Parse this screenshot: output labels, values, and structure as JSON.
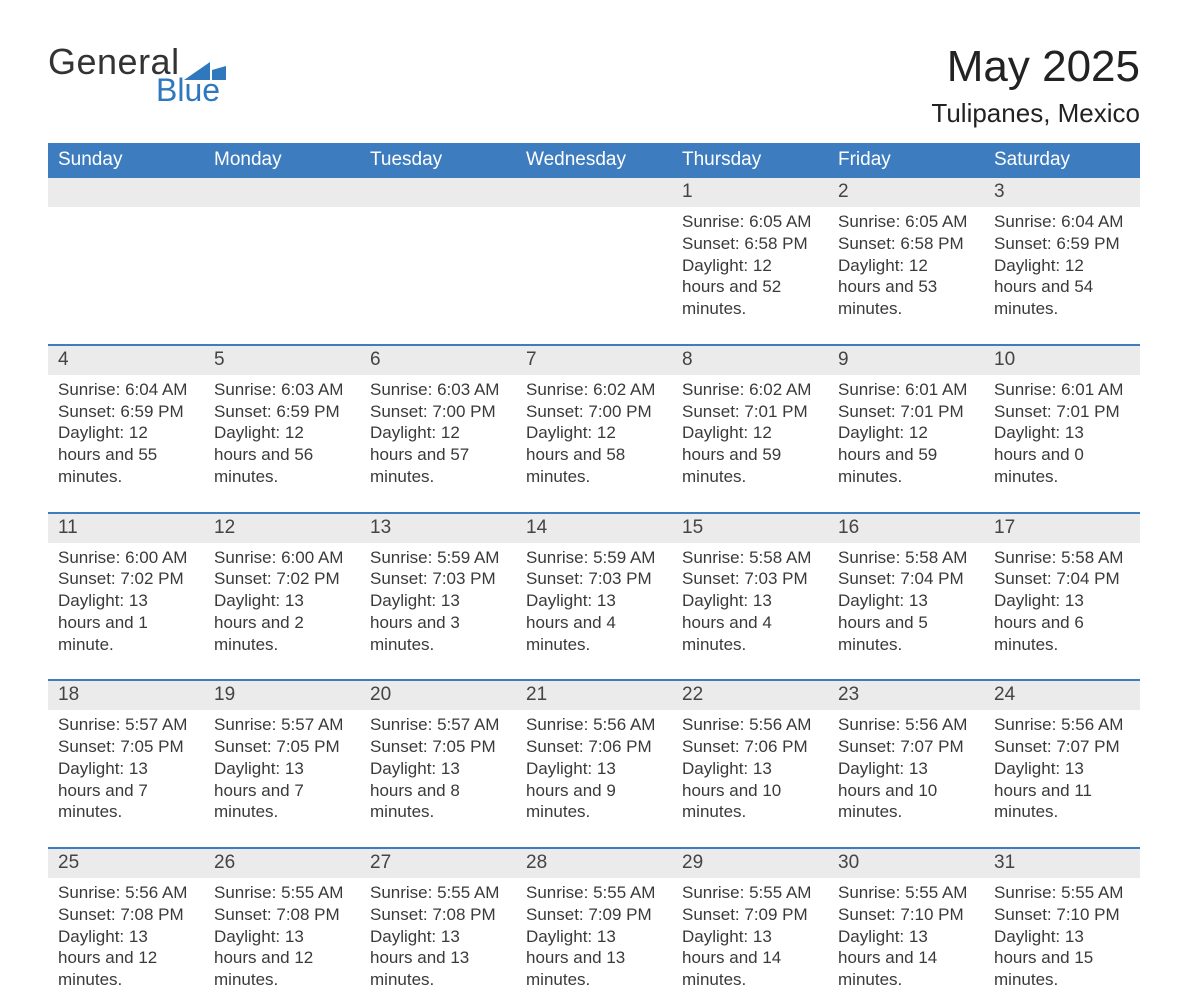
{
  "brand": {
    "word1": "General",
    "word2": "Blue",
    "accent_color": "#2f78bd"
  },
  "title": {
    "month_year": "May 2025",
    "location": "Tulipanes, Mexico"
  },
  "colors": {
    "header_row": "#3d7cbf",
    "header_text": "#ffffff",
    "daynum_bg": "#ebebeb",
    "rule": "#3d7cbf",
    "page_bg": "#ffffff",
    "text": "#2b2b2b"
  },
  "dow": [
    "Sunday",
    "Monday",
    "Tuesday",
    "Wednesday",
    "Thursday",
    "Friday",
    "Saturday"
  ],
  "weeks": [
    {
      "days": [
        null,
        null,
        null,
        null,
        {
          "n": "1",
          "sunrise": "6:05 AM",
          "sunset": "6:58 PM",
          "day_h": 12,
          "day_m": 52
        },
        {
          "n": "2",
          "sunrise": "6:05 AM",
          "sunset": "6:58 PM",
          "day_h": 12,
          "day_m": 53
        },
        {
          "n": "3",
          "sunrise": "6:04 AM",
          "sunset": "6:59 PM",
          "day_h": 12,
          "day_m": 54
        }
      ]
    },
    {
      "days": [
        {
          "n": "4",
          "sunrise": "6:04 AM",
          "sunset": "6:59 PM",
          "day_h": 12,
          "day_m": 55
        },
        {
          "n": "5",
          "sunrise": "6:03 AM",
          "sunset": "6:59 PM",
          "day_h": 12,
          "day_m": 56
        },
        {
          "n": "6",
          "sunrise": "6:03 AM",
          "sunset": "7:00 PM",
          "day_h": 12,
          "day_m": 57
        },
        {
          "n": "7",
          "sunrise": "6:02 AM",
          "sunset": "7:00 PM",
          "day_h": 12,
          "day_m": 58
        },
        {
          "n": "8",
          "sunrise": "6:02 AM",
          "sunset": "7:01 PM",
          "day_h": 12,
          "day_m": 59
        },
        {
          "n": "9",
          "sunrise": "6:01 AM",
          "sunset": "7:01 PM",
          "day_h": 12,
          "day_m": 59
        },
        {
          "n": "10",
          "sunrise": "6:01 AM",
          "sunset": "7:01 PM",
          "day_h": 13,
          "day_m": 0
        }
      ]
    },
    {
      "days": [
        {
          "n": "11",
          "sunrise": "6:00 AM",
          "sunset": "7:02 PM",
          "day_h": 13,
          "day_m": 1
        },
        {
          "n": "12",
          "sunrise": "6:00 AM",
          "sunset": "7:02 PM",
          "day_h": 13,
          "day_m": 2
        },
        {
          "n": "13",
          "sunrise": "5:59 AM",
          "sunset": "7:03 PM",
          "day_h": 13,
          "day_m": 3
        },
        {
          "n": "14",
          "sunrise": "5:59 AM",
          "sunset": "7:03 PM",
          "day_h": 13,
          "day_m": 4
        },
        {
          "n": "15",
          "sunrise": "5:58 AM",
          "sunset": "7:03 PM",
          "day_h": 13,
          "day_m": 4
        },
        {
          "n": "16",
          "sunrise": "5:58 AM",
          "sunset": "7:04 PM",
          "day_h": 13,
          "day_m": 5
        },
        {
          "n": "17",
          "sunrise": "5:58 AM",
          "sunset": "7:04 PM",
          "day_h": 13,
          "day_m": 6
        }
      ]
    },
    {
      "days": [
        {
          "n": "18",
          "sunrise": "5:57 AM",
          "sunset": "7:05 PM",
          "day_h": 13,
          "day_m": 7
        },
        {
          "n": "19",
          "sunrise": "5:57 AM",
          "sunset": "7:05 PM",
          "day_h": 13,
          "day_m": 7
        },
        {
          "n": "20",
          "sunrise": "5:57 AM",
          "sunset": "7:05 PM",
          "day_h": 13,
          "day_m": 8
        },
        {
          "n": "21",
          "sunrise": "5:56 AM",
          "sunset": "7:06 PM",
          "day_h": 13,
          "day_m": 9
        },
        {
          "n": "22",
          "sunrise": "5:56 AM",
          "sunset": "7:06 PM",
          "day_h": 13,
          "day_m": 10
        },
        {
          "n": "23",
          "sunrise": "5:56 AM",
          "sunset": "7:07 PM",
          "day_h": 13,
          "day_m": 10
        },
        {
          "n": "24",
          "sunrise": "5:56 AM",
          "sunset": "7:07 PM",
          "day_h": 13,
          "day_m": 11
        }
      ]
    },
    {
      "days": [
        {
          "n": "25",
          "sunrise": "5:56 AM",
          "sunset": "7:08 PM",
          "day_h": 13,
          "day_m": 12
        },
        {
          "n": "26",
          "sunrise": "5:55 AM",
          "sunset": "7:08 PM",
          "day_h": 13,
          "day_m": 12
        },
        {
          "n": "27",
          "sunrise": "5:55 AM",
          "sunset": "7:08 PM",
          "day_h": 13,
          "day_m": 13
        },
        {
          "n": "28",
          "sunrise": "5:55 AM",
          "sunset": "7:09 PM",
          "day_h": 13,
          "day_m": 13
        },
        {
          "n": "29",
          "sunrise": "5:55 AM",
          "sunset": "7:09 PM",
          "day_h": 13,
          "day_m": 14
        },
        {
          "n": "30",
          "sunrise": "5:55 AM",
          "sunset": "7:10 PM",
          "day_h": 13,
          "day_m": 14
        },
        {
          "n": "31",
          "sunrise": "5:55 AM",
          "sunset": "7:10 PM",
          "day_h": 13,
          "day_m": 15
        }
      ]
    }
  ],
  "labels": {
    "sunrise": "Sunrise: ",
    "sunset": "Sunset: ",
    "daylight_prefix": "Daylight: ",
    "hours_word": " hours",
    "and_word": " and ",
    "minute_singular": " minute.",
    "minutes_plural": " minutes."
  }
}
